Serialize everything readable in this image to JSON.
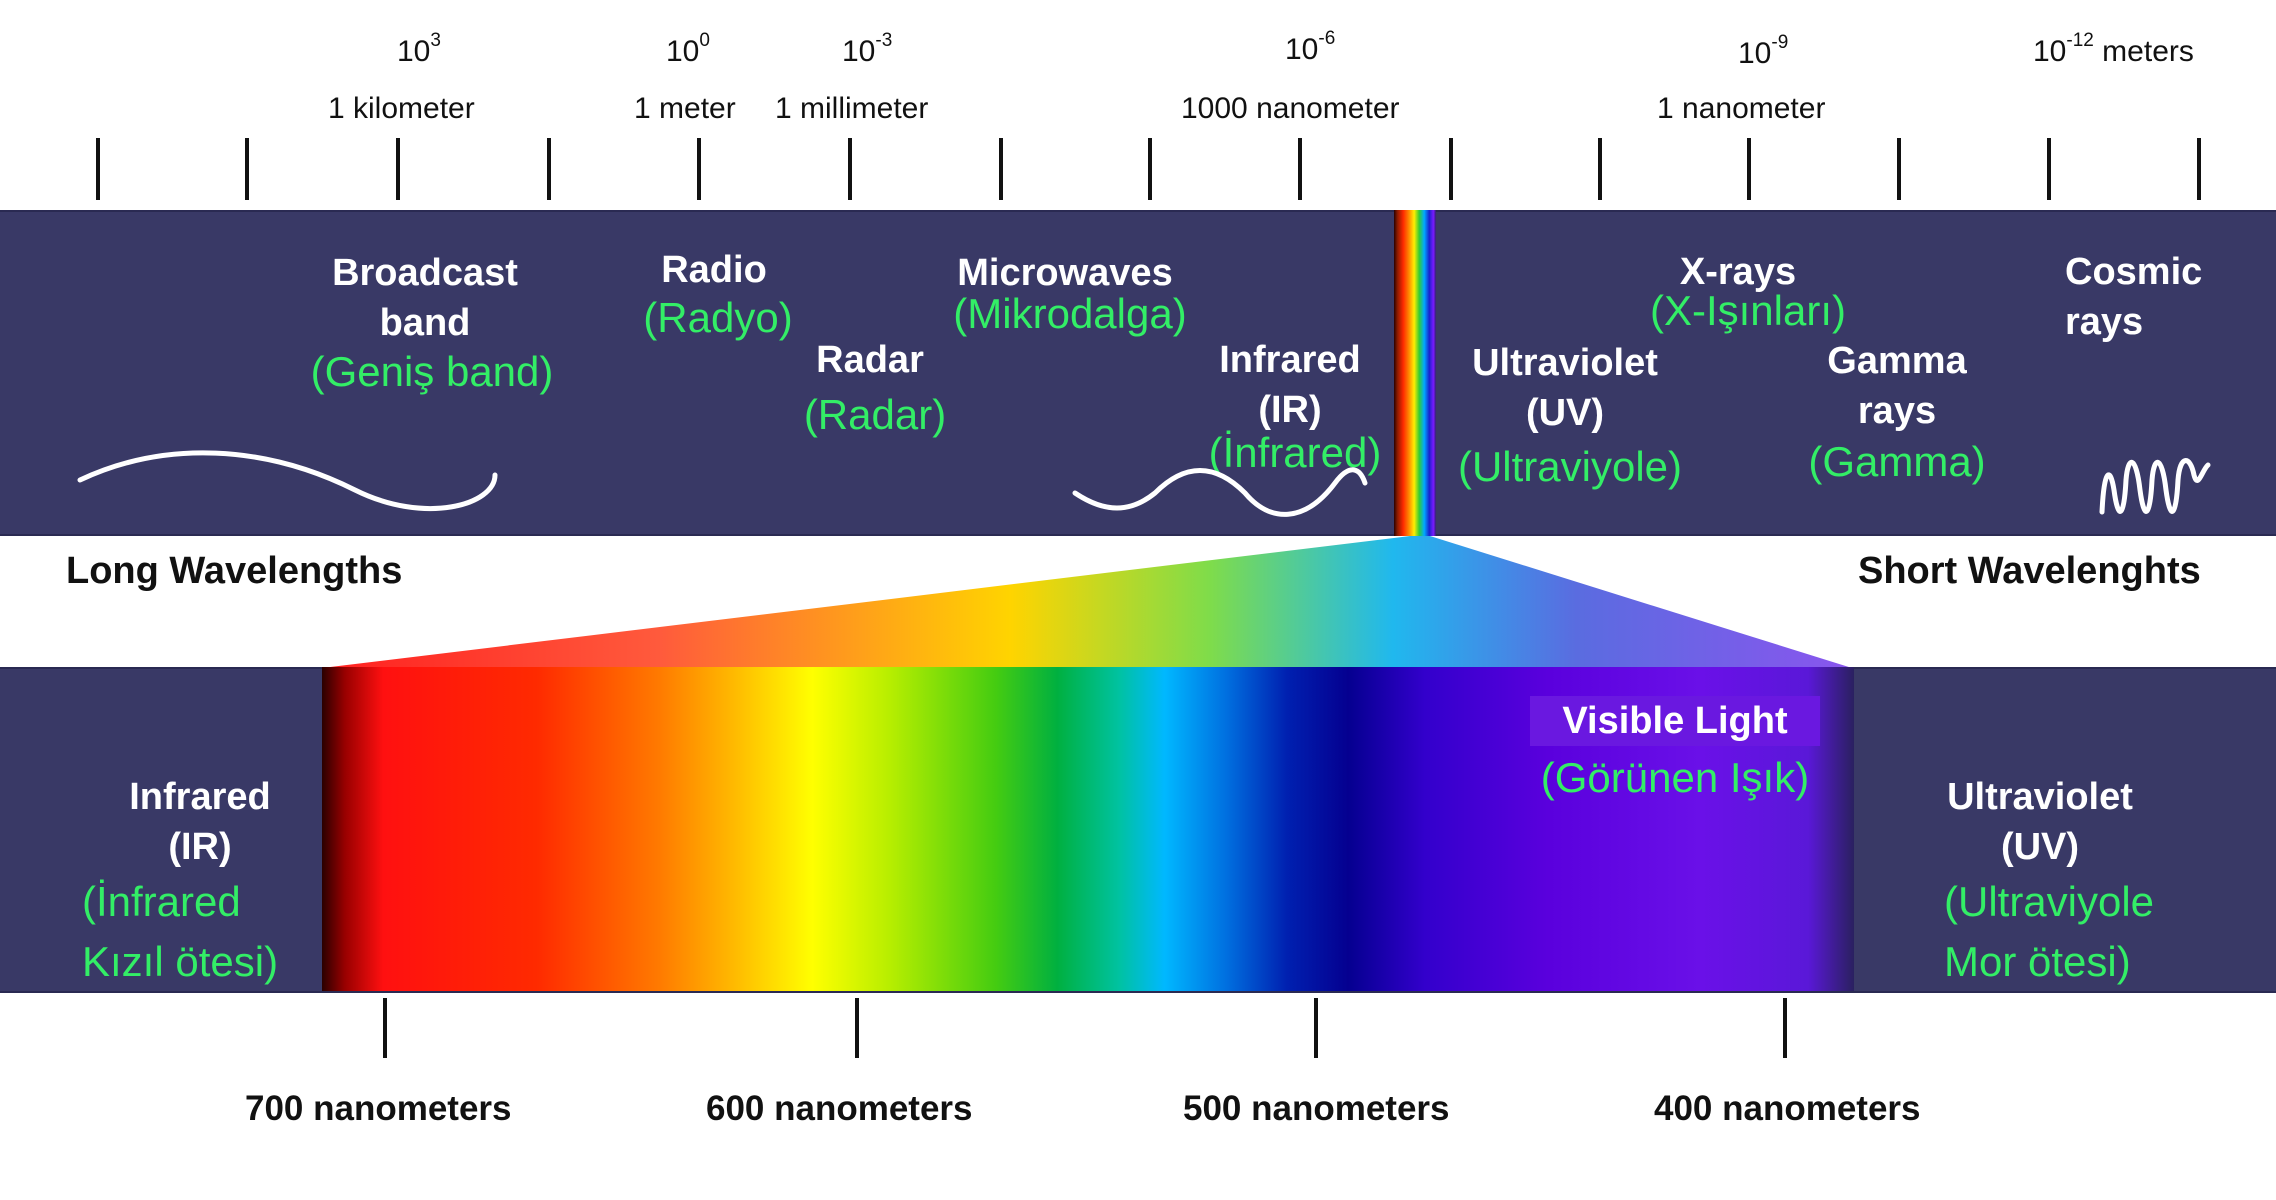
{
  "scale": {
    "exponents": [
      {
        "base": "10",
        "exp": "3"
      },
      {
        "base": "10",
        "exp": "0"
      },
      {
        "base": "10",
        "exp": "-3"
      },
      {
        "base": "10",
        "exp": "-6"
      },
      {
        "base": "10",
        "exp": "-9"
      },
      {
        "base": "10",
        "exp": "-12",
        "suffix": " meters"
      }
    ],
    "labels": [
      "1 kilometer",
      "1 meter",
      "1 millimeter",
      "1000 nanometer",
      "1 nanometer"
    ]
  },
  "regions": {
    "broadcast": {
      "en1": "Broadcast",
      "en2": "band",
      "tr": "(Geniş band)"
    },
    "radio": {
      "en": "Radio",
      "tr": "(Radyo)"
    },
    "radar": {
      "en": "Radar",
      "tr": "(Radar)"
    },
    "microwaves": {
      "en": "Microwaves",
      "tr": "(Mikrodalga)"
    },
    "infrared": {
      "en1": "Infrared",
      "en2": "(IR)",
      "tr": "(İnfrared)"
    },
    "ultraviolet": {
      "en1": "Ultraviolet",
      "en2": "(UV)",
      "tr": "(Ultraviyole)"
    },
    "xrays": {
      "en": "X-rays",
      "tr": "(X-Işınları)"
    },
    "gamma": {
      "en1": "Gamma",
      "en2": "rays",
      "tr": "(Gamma)"
    },
    "cosmic": {
      "en1": "Cosmic",
      "en2": "rays"
    }
  },
  "edges": {
    "long": "Long Wavelengths",
    "short": "Short Wavelenghts"
  },
  "visible_band": {
    "visible": {
      "en": "Visible Light",
      "tr": "(Görünen Işık)"
    },
    "infrared": {
      "en1": "Infrared",
      "en2": "(IR)",
      "tr1": "(İnfrared",
      "tr2": "Kızıl ötesi)"
    },
    "ultraviolet": {
      "en1": "Ultraviolet",
      "en2": "(UV)",
      "tr1": "(Ultraviyole",
      "tr2": "Mor ötesi)"
    }
  },
  "nanometer_labels": [
    "700 nanometers",
    "600 nanometers",
    "500 nanometers",
    "400 nanometers"
  ],
  "colors": {
    "band": "#393966",
    "white_text": "#ffffff",
    "turkish_text": "#33ee66",
    "dark_text": "#111111"
  }
}
